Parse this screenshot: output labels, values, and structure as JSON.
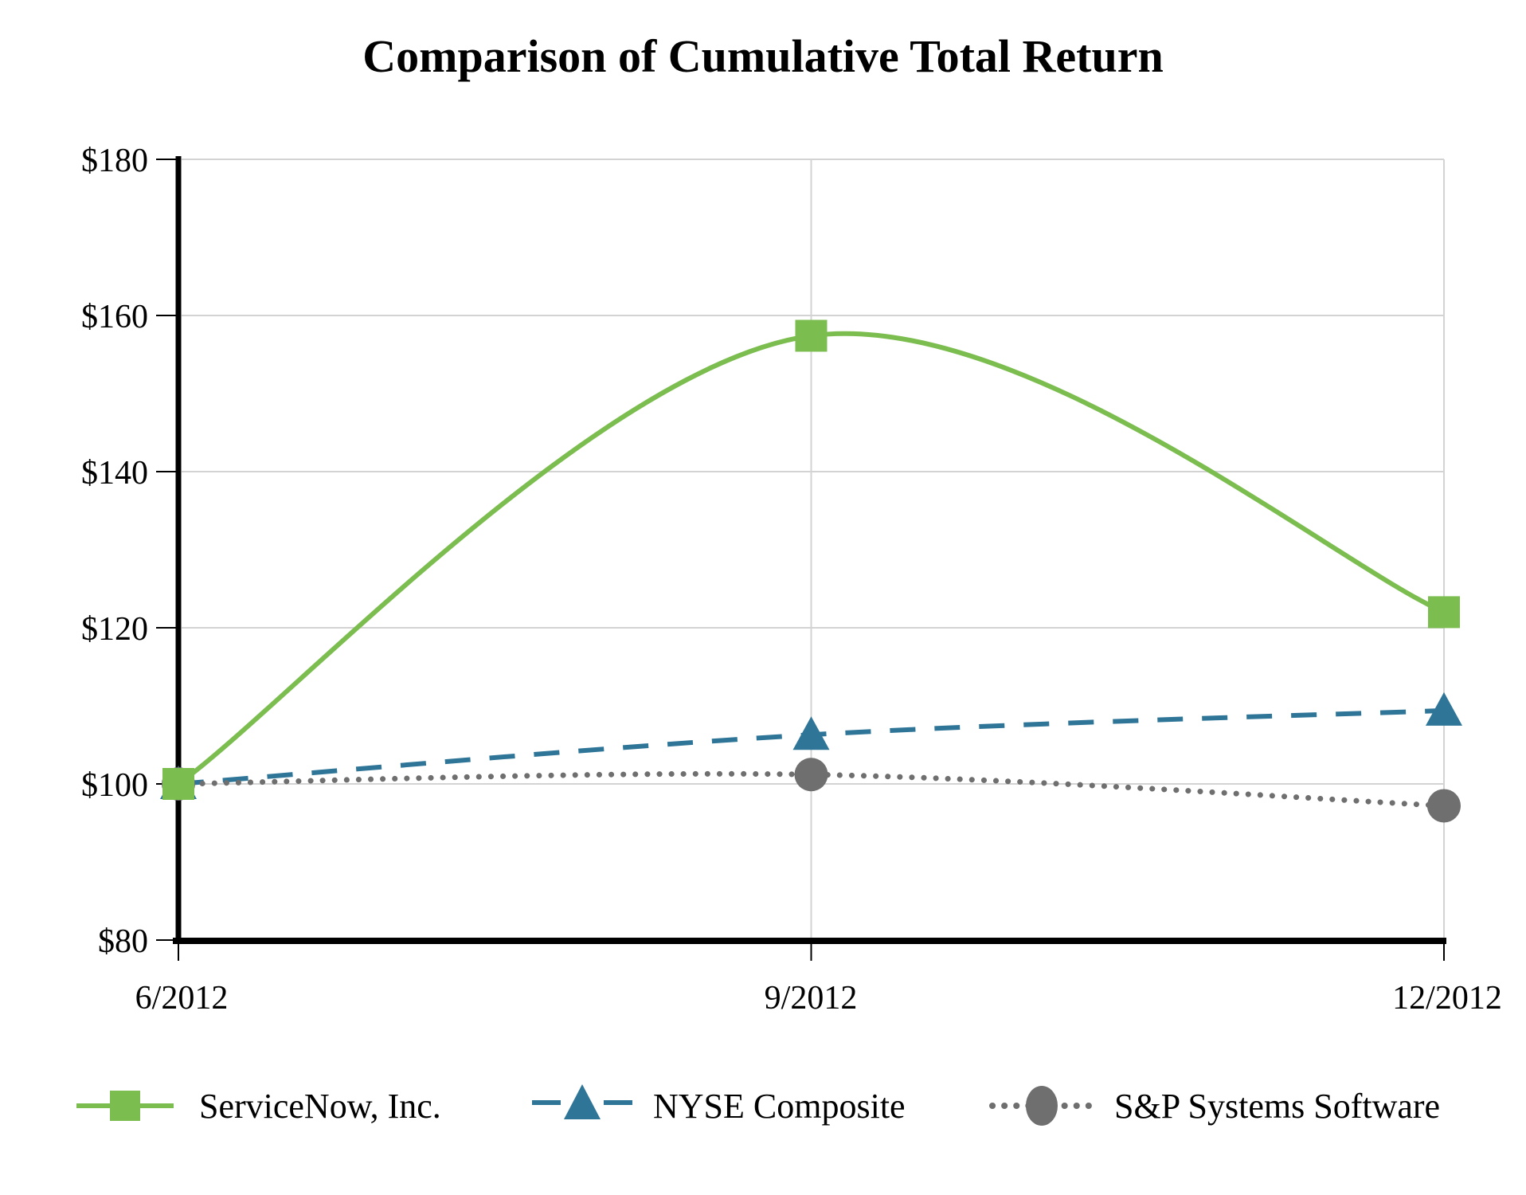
{
  "title": "Comparison of Cumulative Total Return",
  "colors": {
    "background": "#ffffff",
    "gridline": "#d3d3d3",
    "axis": "#000000",
    "servicenow_green": "#7cbd4f",
    "nyse_blue": "#2e7598",
    "sp_gray": "#6f6f6f"
  },
  "chart_data": {
    "type": "line",
    "title": "Comparison of Cumulative Total Return",
    "x_categories": [
      "6/2012",
      "9/2012",
      "12/2012"
    ],
    "series": [
      {
        "name": "ServiceNow, Inc.",
        "marker": "square",
        "line_style": "solid",
        "color": "#7cbd4f",
        "values": [
          100,
          157.4,
          122.0
        ]
      },
      {
        "name": "NYSE Composite",
        "marker": "triangle",
        "line_style": "dashed",
        "color": "#2e7598",
        "values": [
          100,
          106.3,
          109.4
        ]
      },
      {
        "name": "S&P Systems Software",
        "marker": "circle",
        "line_style": "dotted",
        "color": "#6f6f6f",
        "values": [
          100,
          101.2,
          97.2
        ]
      }
    ],
    "ylim": [
      80,
      180
    ],
    "ytick_step": 20,
    "y_tick_labels": [
      "$180",
      "$160",
      "$140",
      "$120",
      "$100",
      "$80"
    ],
    "x_tick_labels": [
      "6/2012",
      "9/2012",
      "12/2012"
    ],
    "grid": true,
    "legend_position": "bottom",
    "line_smoothing": "spline"
  }
}
